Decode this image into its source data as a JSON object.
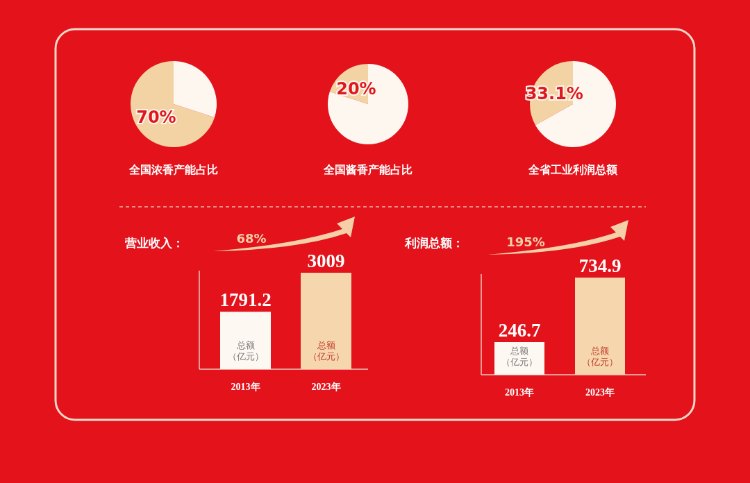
{
  "chart_data": [
    {
      "type": "pie",
      "title": "全国浓香产能占比",
      "categories": [
        null,
        null
      ],
      "values": [
        70,
        30
      ],
      "colors": [
        "#f3d2a4",
        "#fdf7f0"
      ],
      "value_labels": [
        "70%",
        null
      ]
    },
    {
      "type": "pie",
      "title": "全国酱香产能占比",
      "categories": [
        null,
        null
      ],
      "values": [
        20,
        80
      ],
      "colors": [
        "#f3d2a4",
        "#fdf7f0"
      ],
      "value_labels": [
        "20%",
        null
      ]
    },
    {
      "type": "pie",
      "title": "全省工业利润总额",
      "categories": [
        null,
        null
      ],
      "values": [
        33.1,
        66.9
      ],
      "colors": [
        "#f3d2a4",
        "#fdf7f0"
      ],
      "value_labels": [
        "33.1%",
        null
      ]
    },
    {
      "type": "bar",
      "title": "营业收入：",
      "categories": [
        "2013年",
        "2023年"
      ],
      "values": [
        1791.2,
        3009
      ],
      "colors": [
        "#fdf8f2",
        "#f5d6ad"
      ],
      "data_labels": true,
      "annotations": [
        "68%",
        "总额",
        "（亿元）",
        "总额",
        "（亿元）"
      ]
    },
    {
      "type": "bar",
      "title": "利润总额：",
      "categories": [
        "2013年",
        "2023年"
      ],
      "values": [
        246.7,
        734.9
      ],
      "colors": [
        "#fdf8f2",
        "#f5d6ad"
      ],
      "data_labels": true,
      "annotations": [
        "195%",
        "总额",
        "（亿元）",
        "总额",
        "（亿元）"
      ]
    }
  ]
}
